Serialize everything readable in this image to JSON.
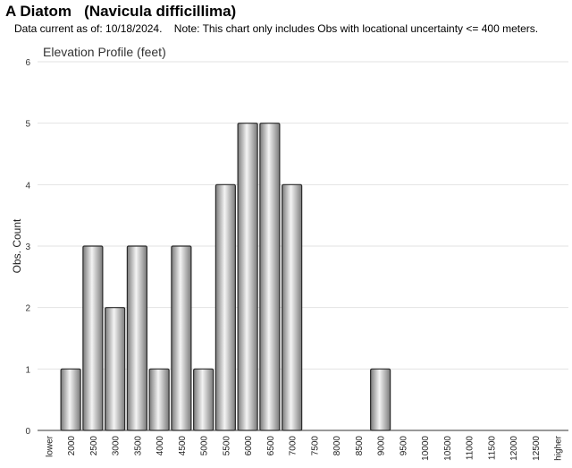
{
  "page": {
    "title": "A Diatom   (Navicula difficillima)",
    "note": "Data current as of: 10/18/2024.    Note: This chart only includes Obs with locational uncertainty <= 400 meters."
  },
  "colors": {
    "bar_light": "#f4f4f4",
    "bar_dark": "#7a7a7a",
    "bar_stroke": "#2b2b2b",
    "grid": "#e2e2e2",
    "axis": "#333333"
  },
  "chart_data": {
    "type": "bar",
    "title": "Elevation Profile (feet)",
    "xlabel": "",
    "ylabel": "Obs. Count",
    "ylim": [
      0,
      6
    ],
    "yticks": [
      0,
      1,
      2,
      3,
      4,
      5,
      6
    ],
    "grid": true,
    "categories": [
      "lower",
      "2000",
      "2500",
      "3000",
      "3500",
      "4000",
      "4500",
      "5000",
      "5500",
      "6000",
      "6500",
      "7000",
      "7500",
      "8000",
      "8500",
      "9000",
      "9500",
      "10000",
      "10500",
      "11000",
      "11500",
      "12000",
      "12500",
      "higher"
    ],
    "values": [
      0,
      1,
      3,
      2,
      3,
      1,
      3,
      1,
      4,
      5,
      5,
      4,
      0,
      0,
      0,
      1,
      0,
      0,
      0,
      0,
      0,
      0,
      0,
      0
    ]
  }
}
